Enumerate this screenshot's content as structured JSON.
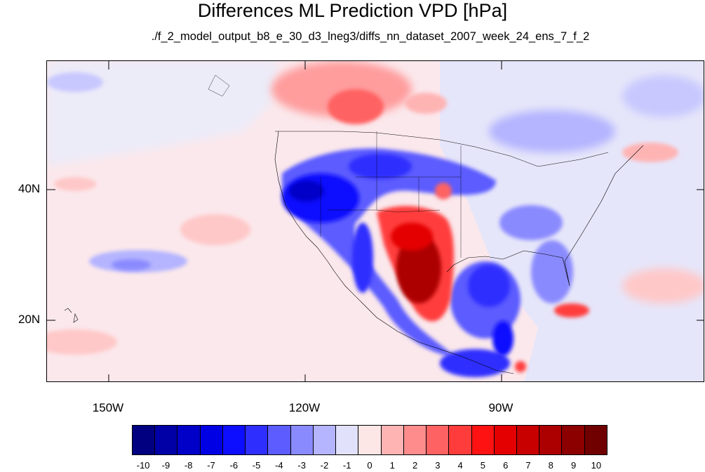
{
  "title": "Differences ML Prediction VPD [hPa]",
  "subtitle": "./f_2_model_output_b8_e_30_d3_lneg3/diffs_nn_dataset_2007_week_24_ens_7_f_2",
  "map": {
    "lat_labels": [
      "40N",
      "20N"
    ],
    "lon_labels": [
      "150W",
      "120W",
      "90W"
    ],
    "lon_range": [
      -160,
      -57
    ],
    "lat_range": [
      11,
      59
    ]
  },
  "colorbar": {
    "labels": [
      "-10",
      "-9",
      "-8",
      "-7",
      "-6",
      "-5",
      "-4",
      "-3",
      "-2",
      "-1",
      "0",
      "1",
      "2",
      "3",
      "4",
      "5",
      "6",
      "7",
      "8",
      "9",
      "10"
    ],
    "colors": [
      "#000080",
      "#0000a6",
      "#0000c8",
      "#0000e4",
      "#0d0dff",
      "#2e2eff",
      "#5c5cff",
      "#8a8aff",
      "#b4b4ff",
      "#e1e1fb",
      "#fde6e6",
      "#ffb4b4",
      "#ff8c8c",
      "#ff6262",
      "#ff3c3c",
      "#ff1212",
      "#e40000",
      "#c80000",
      "#ac0000",
      "#8c0000",
      "#700000"
    ]
  }
}
